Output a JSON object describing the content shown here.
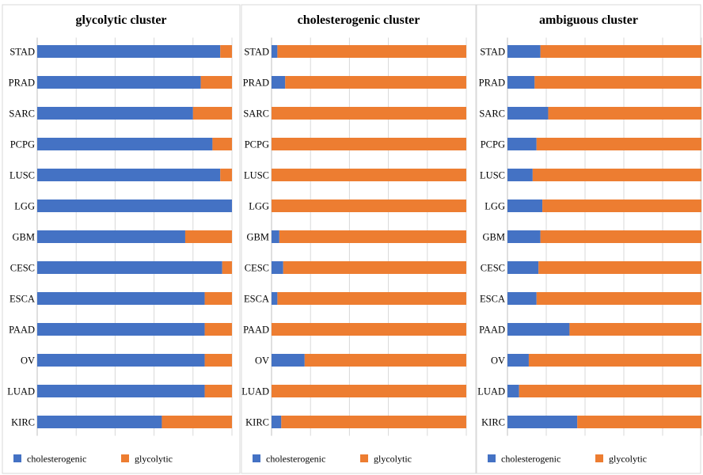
{
  "colors": {
    "cholesterogenic": "#4472C4",
    "glycolytic": "#ED7D31"
  },
  "chart_data": [
    {
      "type": "bar",
      "orientation": "horizontal",
      "stacked": "100%",
      "title": "glycolytic cluster",
      "categories": [
        "STAD",
        "PRAD",
        "SARC",
        "PCPG",
        "LUSC",
        "LGG",
        "GBM",
        "CESC",
        "ESCA",
        "PAAD",
        "OV",
        "LUAD",
        "KIRC"
      ],
      "series": [
        {
          "name": "cholesterogenic",
          "values": [
            94,
            84,
            80,
            90,
            94,
            100,
            76,
            95,
            86,
            86,
            86,
            86,
            64
          ]
        },
        {
          "name": "glycolytic",
          "values": [
            6,
            16,
            20,
            10,
            6,
            0,
            24,
            5,
            14,
            14,
            14,
            14,
            36
          ]
        }
      ],
      "xlim": [
        0,
        100
      ],
      "grid": true,
      "legend": "bottom"
    },
    {
      "type": "bar",
      "orientation": "horizontal",
      "stacked": "100%",
      "title": "cholesterogenic cluster",
      "categories": [
        "STAD",
        "PRAD",
        "SARC",
        "PCPG",
        "LUSC",
        "LGG",
        "GBM",
        "CESC",
        "ESCA",
        "PAAD",
        "OV",
        "LUAD",
        "KIRC"
      ],
      "series": [
        {
          "name": "cholesterogenic",
          "values": [
            3,
            7,
            0,
            0,
            0,
            0,
            4,
            6,
            3,
            0,
            17,
            0,
            5
          ]
        },
        {
          "name": "glycolytic",
          "values": [
            97,
            93,
            100,
            100,
            100,
            100,
            96,
            94,
            97,
            100,
            83,
            100,
            95
          ]
        }
      ],
      "xlim": [
        0,
        100
      ],
      "grid": true,
      "legend": "bottom"
    },
    {
      "type": "bar",
      "orientation": "horizontal",
      "stacked": "100%",
      "title": "ambiguous cluster",
      "categories": [
        "STAD",
        "PRAD",
        "SARC",
        "PCPG",
        "LUSC",
        "LGG",
        "GBM",
        "CESC",
        "ESCA",
        "PAAD",
        "OV",
        "LUAD",
        "KIRC"
      ],
      "series": [
        {
          "name": "cholesterogenic",
          "values": [
            17,
            14,
            21,
            15,
            13,
            18,
            17,
            16,
            15,
            32,
            11,
            6,
            36
          ]
        },
        {
          "name": "glycolytic",
          "values": [
            83,
            86,
            79,
            85,
            87,
            82,
            83,
            84,
            85,
            68,
            89,
            94,
            64
          ]
        }
      ],
      "xlim": [
        0,
        100
      ],
      "grid": true,
      "legend": "bottom"
    }
  ]
}
